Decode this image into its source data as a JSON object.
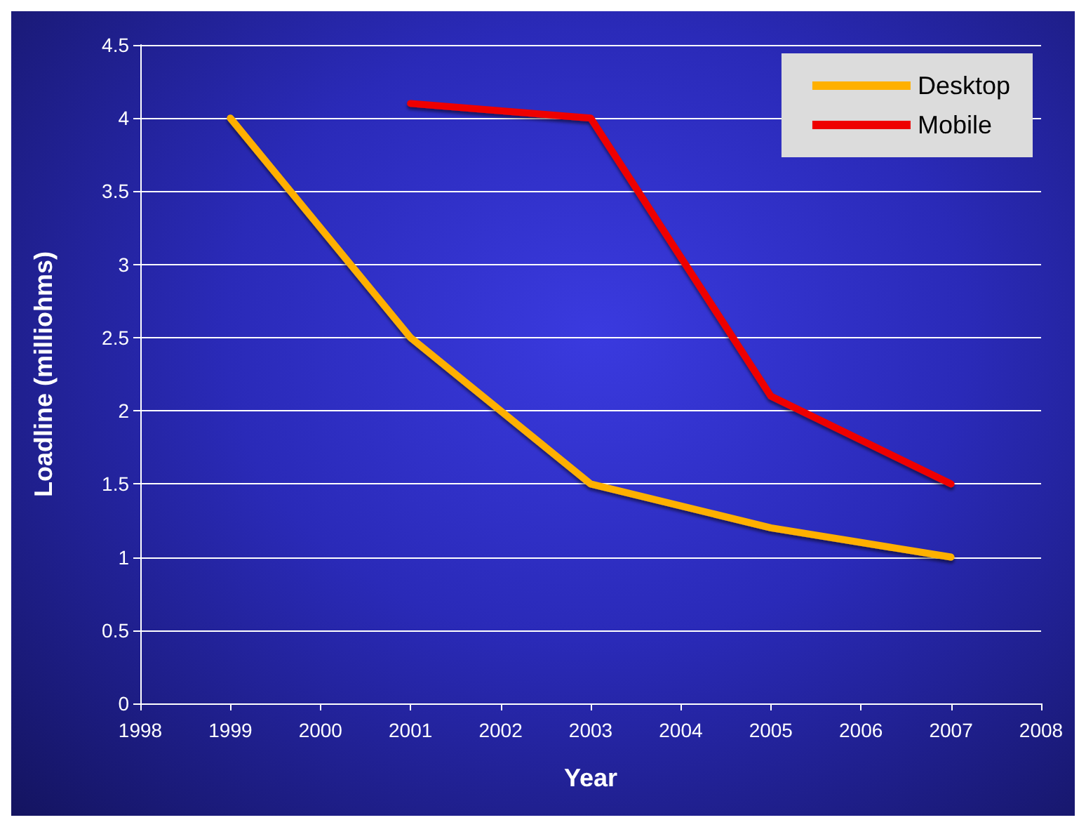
{
  "chart_data": {
    "type": "line",
    "xlabel": "Year",
    "ylabel": "Loadline (milliohms)",
    "xlim": [
      1998,
      2008
    ],
    "xticks": [
      1998,
      1999,
      2000,
      2001,
      2002,
      2003,
      2004,
      2005,
      2006,
      2007,
      2008
    ],
    "ylim": [
      0,
      4.5
    ],
    "yticks": [
      0,
      0.5,
      1,
      1.5,
      2,
      2.5,
      3,
      3.5,
      4,
      4.5
    ],
    "series": [
      {
        "name": "Desktop",
        "color": "#ffb000",
        "x": [
          1999,
          2001,
          2003,
          2005,
          2007
        ],
        "values": [
          4,
          2.5,
          1.5,
          1.2,
          1.0
        ]
      },
      {
        "name": "Mobile",
        "color": "#ee0000",
        "x": [
          2001,
          2003,
          2005,
          2007
        ],
        "values": [
          4.1,
          4.0,
          2.1,
          1.5
        ]
      }
    ],
    "grid": "y",
    "legend": "top right",
    "marker": "none",
    "line_style": "solid"
  }
}
